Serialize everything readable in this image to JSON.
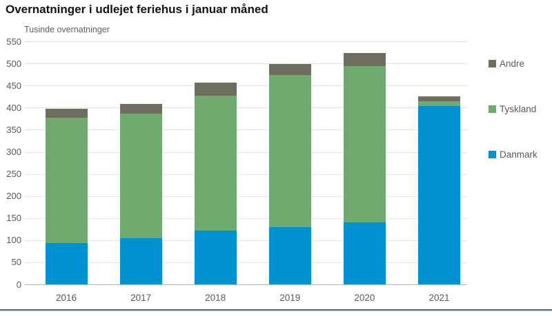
{
  "chart_data": {
    "type": "bar",
    "stacked": true,
    "title": "Overnatninger i udlejet feriehus i januar måned",
    "subtitle": "Tusinde overnatninger",
    "categories": [
      "2016",
      "2017",
      "2018",
      "2019",
      "2020",
      "2021"
    ],
    "series": [
      {
        "name": "Danmark",
        "color": "#0091d2",
        "values": [
          94,
          105,
          122,
          130,
          140,
          403
        ]
      },
      {
        "name": "Tyskland",
        "color": "#6faa6e",
        "values": [
          283,
          281,
          305,
          344,
          354,
          12
        ]
      },
      {
        "name": "Andre",
        "color": "#6e6e60",
        "values": [
          21,
          23,
          29,
          25,
          29,
          11
        ]
      }
    ],
    "totals": [
      398,
      409,
      456,
      499,
      523,
      426
    ],
    "ylim": [
      0,
      550
    ],
    "yticks": [
      0,
      50,
      100,
      150,
      200,
      250,
      300,
      350,
      400,
      450,
      500,
      550
    ],
    "xlabel": "",
    "ylabel": "Tusinde overnatninger",
    "grid": true,
    "legend_position": "right",
    "legend_order": [
      "Andre",
      "Tyskland",
      "Danmark"
    ]
  },
  "colors": {
    "danmark_blue": "#0091d2",
    "tyskland_green": "#6faa6e",
    "andre_gray": "#6e6e60",
    "axis_text": "#595951",
    "gridline": "#e4e4de",
    "bottom_rule": "#527484"
  }
}
